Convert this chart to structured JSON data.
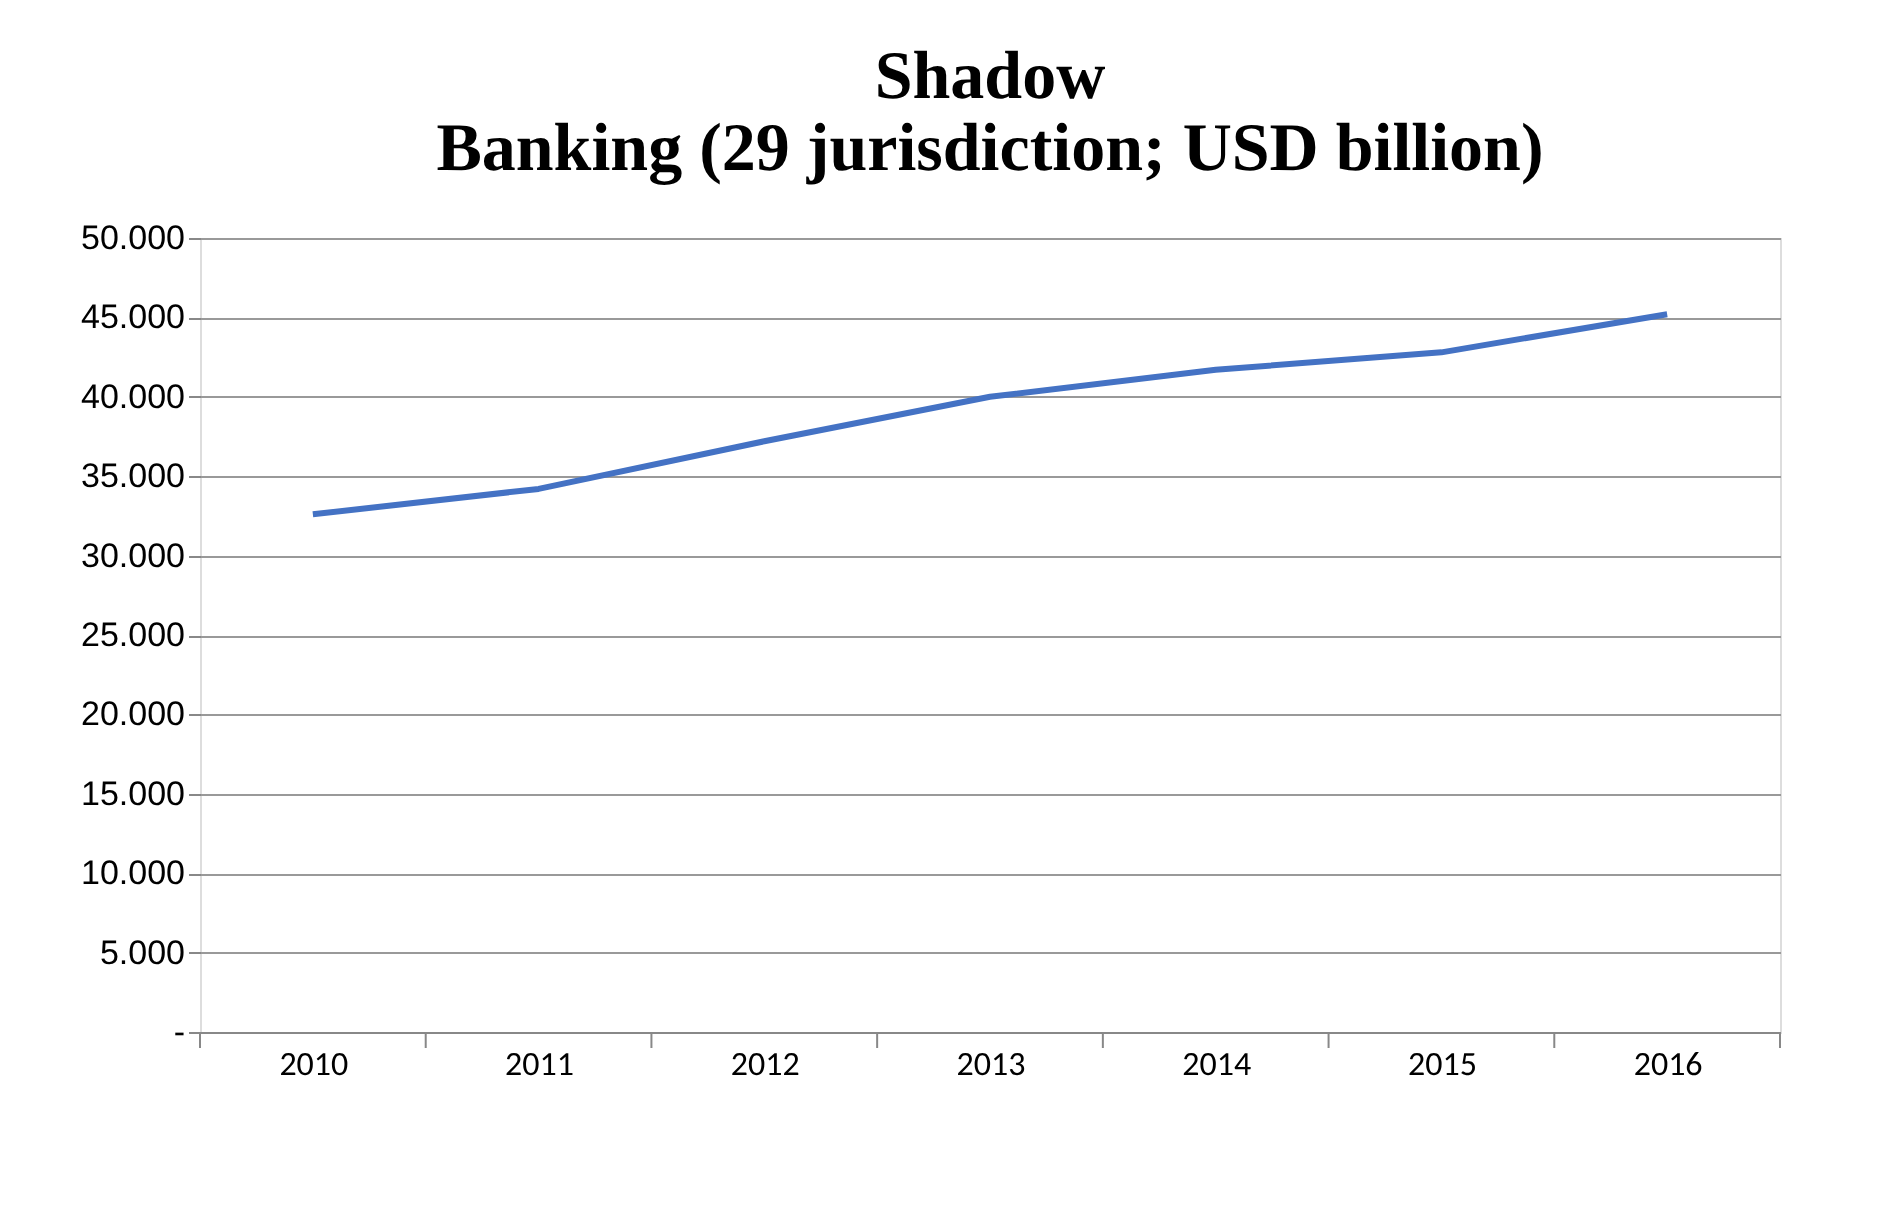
{
  "chart_data": {
    "type": "line",
    "title": [
      "Shadow",
      "Banking (29 jurisdiction; USD billion)"
    ],
    "categories": [
      "2010",
      "2011",
      "2012",
      "2013",
      "2014",
      "2015",
      "2016"
    ],
    "series": [
      {
        "color": "#4472c4",
        "values": [
          32600,
          34200,
          37200,
          40000,
          41700,
          42800,
          45200
        ]
      }
    ],
    "ylim": [
      0,
      50000
    ],
    "yticks": [
      {
        "value": 0,
        "label": "-"
      },
      {
        "value": 5000,
        "label": "5.000"
      },
      {
        "value": 10000,
        "label": "10.000"
      },
      {
        "value": 15000,
        "label": "15.000"
      },
      {
        "value": 20000,
        "label": "20.000"
      },
      {
        "value": 25000,
        "label": "25.000"
      },
      {
        "value": 30000,
        "label": "30.000"
      },
      {
        "value": 35000,
        "label": "35.000"
      },
      {
        "value": 40000,
        "label": "40.000"
      },
      {
        "value": 45000,
        "label": "45.000"
      },
      {
        "value": 50000,
        "label": "50.000"
      }
    ],
    "grid": "y",
    "marker": "none",
    "line_style": "solid"
  }
}
